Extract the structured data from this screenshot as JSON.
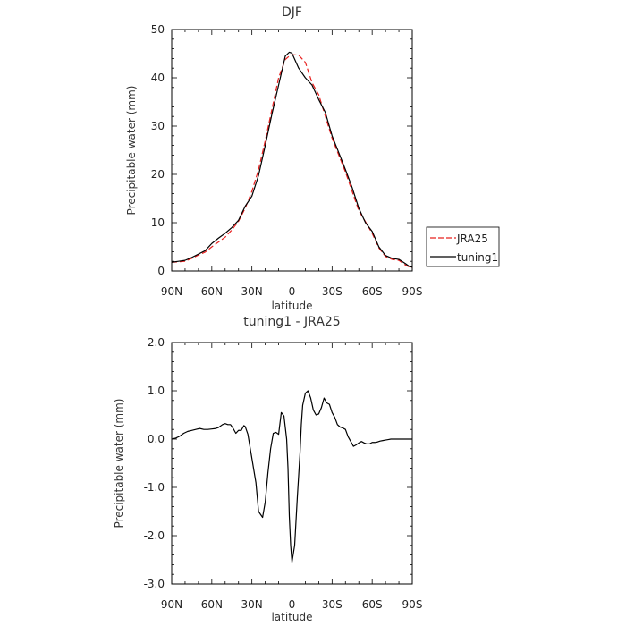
{
  "chart_data": [
    {
      "type": "line",
      "title": "DJF",
      "xlabel": "latitude",
      "ylabel": "Precipitable water (mm)",
      "xlim": [
        90,
        -90
      ],
      "ylim": [
        0,
        50
      ],
      "x_ticks": [
        90,
        60,
        30,
        0,
        -30,
        -60,
        -90
      ],
      "x_tick_labels": [
        "90N",
        "60N",
        "30N",
        "0",
        "30S",
        "60S",
        "90S"
      ],
      "y_ticks": [
        0,
        10,
        20,
        30,
        40,
        50
      ],
      "y_tick_labels": [
        "0",
        "10",
        "20",
        "30",
        "40",
        "50"
      ],
      "legend_position": "right",
      "series": [
        {
          "name": "JRA25",
          "color": "#e8201f",
          "dash": "dashed",
          "x": [
            90,
            85,
            80,
            75,
            70,
            65,
            60,
            55,
            50,
            45,
            40,
            35,
            30,
            25,
            20,
            15,
            10,
            5,
            2,
            0,
            -5,
            -10,
            -15,
            -20,
            -25,
            -30,
            -35,
            -40,
            -45,
            -50,
            -55,
            -60,
            -65,
            -70,
            -75,
            -80,
            -85,
            -88,
            -90
          ],
          "y": [
            1.8,
            1.9,
            2.0,
            2.6,
            3.3,
            3.9,
            5.0,
            6.0,
            7.0,
            8.5,
            10.3,
            13.0,
            16.5,
            21.0,
            27.0,
            33.5,
            40.0,
            43.8,
            44.5,
            44.8,
            44.7,
            43.2,
            39.0,
            36.5,
            32.0,
            27.5,
            24.0,
            20.5,
            16.5,
            12.5,
            10.2,
            7.8,
            4.8,
            3.0,
            2.4,
            2.2,
            1.2,
            0.8,
            0.7
          ]
        },
        {
          "name": "tuning1",
          "color": "#000000",
          "dash": "solid",
          "x": [
            90,
            85,
            80,
            75,
            70,
            65,
            60,
            55,
            50,
            45,
            40,
            35,
            30,
            25,
            20,
            15,
            10,
            5,
            2,
            0,
            -5,
            -10,
            -15,
            -20,
            -25,
            -30,
            -35,
            -40,
            -45,
            -50,
            -55,
            -60,
            -65,
            -70,
            -75,
            -80,
            -85,
            -88,
            -90
          ],
          "y": [
            1.8,
            2.0,
            2.2,
            2.8,
            3.5,
            4.2,
            5.7,
            6.8,
            7.8,
            9.0,
            10.5,
            13.4,
            15.5,
            19.8,
            26.0,
            32.5,
            38.5,
            44.5,
            45.3,
            45.1,
            42.0,
            40.0,
            38.5,
            35.5,
            32.8,
            28.0,
            24.5,
            21.0,
            17.3,
            13.0,
            10.0,
            8.2,
            5.0,
            3.2,
            2.6,
            2.4,
            1.5,
            0.9,
            0.8
          ]
        }
      ]
    },
    {
      "type": "line",
      "title": "tuning1 - JRA25",
      "xlabel": "latitude",
      "ylabel": "Precipitable water (mm)",
      "xlim": [
        90,
        -90
      ],
      "ylim": [
        -3,
        2
      ],
      "x_ticks": [
        90,
        60,
        30,
        0,
        -30,
        -60,
        -90
      ],
      "x_tick_labels": [
        "90N",
        "60N",
        "30N",
        "0",
        "30S",
        "60S",
        "90S"
      ],
      "y_ticks": [
        -3,
        -2,
        -1,
        0,
        1,
        2
      ],
      "y_tick_labels": [
        "-3.0",
        "-2.0",
        "-1.0",
        "0.0",
        "1.0",
        "2.0"
      ],
      "series": [
        {
          "color": "#000000",
          "dash": "solid",
          "x": [
            90,
            87,
            84,
            81,
            78,
            75,
            72,
            69,
            66,
            63,
            60,
            57,
            55,
            52,
            50,
            48,
            46,
            44,
            42,
            40,
            38,
            36,
            35,
            33,
            30,
            27,
            25,
            22,
            20,
            18,
            16,
            14,
            12,
            10,
            8,
            6,
            4,
            3,
            2,
            1,
            0,
            -2,
            -4,
            -6,
            -7,
            -8,
            -10,
            -12,
            -14,
            -16,
            -18,
            -20,
            -22,
            -24,
            -26,
            -28,
            -30,
            -32,
            -34,
            -36,
            -38,
            -40,
            -42,
            -44,
            -46,
            -48,
            -50,
            -52,
            -54,
            -56,
            -58,
            -60,
            -62,
            -64,
            -66,
            -68,
            -70,
            -72,
            -74,
            -76,
            -78,
            -80,
            -82,
            -84,
            -86,
            -88,
            -90
          ],
          "y": [
            0.0,
            0.02,
            0.06,
            0.12,
            0.16,
            0.18,
            0.2,
            0.22,
            0.2,
            0.2,
            0.21,
            0.22,
            0.24,
            0.3,
            0.32,
            0.3,
            0.3,
            0.22,
            0.12,
            0.18,
            0.18,
            0.28,
            0.26,
            0.1,
            -0.4,
            -0.9,
            -1.5,
            -1.62,
            -1.3,
            -0.7,
            -0.2,
            0.12,
            0.14,
            0.1,
            0.55,
            0.48,
            0.0,
            -0.6,
            -1.6,
            -2.2,
            -2.55,
            -2.2,
            -1.2,
            -0.3,
            0.3,
            0.7,
            0.95,
            1.0,
            0.85,
            0.6,
            0.5,
            0.52,
            0.65,
            0.85,
            0.75,
            0.72,
            0.55,
            0.45,
            0.3,
            0.25,
            0.23,
            0.2,
            0.05,
            -0.05,
            -0.15,
            -0.12,
            -0.08,
            -0.05,
            -0.08,
            -0.1,
            -0.1,
            -0.07,
            -0.07,
            -0.06,
            -0.04,
            -0.03,
            -0.02,
            -0.01,
            0.0,
            0.0,
            0.0,
            0.0,
            0.0,
            0.0,
            0.0,
            0.0,
            0.0
          ]
        }
      ]
    }
  ]
}
